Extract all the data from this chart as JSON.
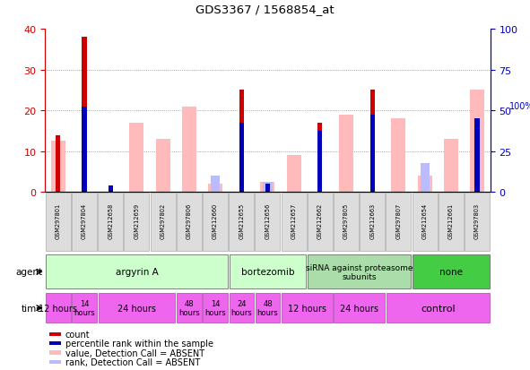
{
  "title": "GDS3367 / 1568854_at",
  "samples": [
    "GSM297801",
    "GSM297804",
    "GSM212658",
    "GSM212659",
    "GSM297802",
    "GSM297806",
    "GSM212660",
    "GSM212655",
    "GSM212656",
    "GSM212657",
    "GSM212662",
    "GSM297805",
    "GSM212663",
    "GSM297807",
    "GSM212654",
    "GSM212661",
    "GSM297803"
  ],
  "red_bars": [
    14,
    38,
    0,
    0,
    0,
    0,
    0,
    25,
    0,
    0,
    17,
    0,
    25,
    0,
    0,
    0,
    0
  ],
  "pink_bars": [
    12.5,
    0,
    0,
    17,
    13,
    21,
    2,
    0,
    2.5,
    9,
    0,
    19,
    0,
    18,
    4,
    13,
    25
  ],
  "blue_bars": [
    0,
    21,
    1.5,
    0,
    0,
    0,
    0,
    17,
    2,
    0,
    15,
    0,
    19,
    0,
    0,
    0,
    18
  ],
  "lblue_bars": [
    0,
    0,
    0,
    0,
    0,
    0,
    4,
    0,
    2.5,
    0,
    0,
    0,
    0,
    0,
    7,
    0,
    0
  ],
  "ylim_left": [
    0,
    40
  ],
  "ylim_right": [
    0,
    100
  ],
  "yticks_left": [
    0,
    10,
    20,
    30,
    40
  ],
  "yticks_right": [
    0,
    25,
    50,
    75,
    100
  ],
  "left_axis_color": "#cc0000",
  "right_axis_color": "#0000bb",
  "plot_bg": "#ffffff",
  "grid_color": "#888888",
  "agent_groups": [
    {
      "label": "argyrin A",
      "start": 0,
      "end": 7,
      "color": "#ccffcc"
    },
    {
      "label": "bortezomib",
      "start": 7,
      "end": 10,
      "color": "#ccffcc"
    },
    {
      "label": "siRNA against proteasome\nsubunits",
      "start": 10,
      "end": 14,
      "color": "#aaddaa"
    },
    {
      "label": "none",
      "start": 14,
      "end": 17,
      "color": "#44cc44"
    }
  ],
  "time_groups": [
    {
      "label": "12 hours",
      "start": 0,
      "end": 1,
      "fontsize": 7
    },
    {
      "label": "14\nhours",
      "start": 1,
      "end": 2,
      "fontsize": 6
    },
    {
      "label": "24 hours",
      "start": 2,
      "end": 5,
      "fontsize": 7
    },
    {
      "label": "48\nhours",
      "start": 5,
      "end": 6,
      "fontsize": 6
    },
    {
      "label": "14\nhours",
      "start": 6,
      "end": 7,
      "fontsize": 6
    },
    {
      "label": "24\nhours",
      "start": 7,
      "end": 8,
      "fontsize": 6
    },
    {
      "label": "48\nhours",
      "start": 8,
      "end": 9,
      "fontsize": 6
    },
    {
      "label": "12 hours",
      "start": 9,
      "end": 11,
      "fontsize": 7
    },
    {
      "label": "24 hours",
      "start": 11,
      "end": 13,
      "fontsize": 7
    },
    {
      "label": "control",
      "start": 13,
      "end": 17,
      "fontsize": 8
    }
  ],
  "time_color": "#ee66ee",
  "legend_items": [
    {
      "color": "#cc0000",
      "label": "count"
    },
    {
      "color": "#0000bb",
      "label": "percentile rank within the sample"
    },
    {
      "color": "#ffbbbb",
      "label": "value, Detection Call = ABSENT"
    },
    {
      "color": "#bbbbff",
      "label": "rank, Detection Call = ABSENT"
    }
  ]
}
